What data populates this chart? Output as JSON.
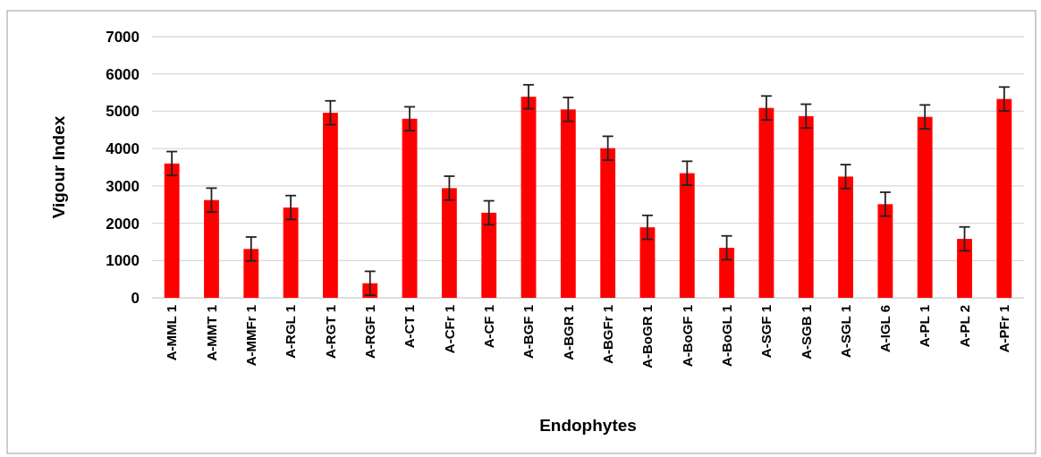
{
  "chart_data": {
    "type": "bar",
    "xlabel": "Endophytes",
    "ylabel": "Vigour Index",
    "categories": [
      "A-MML 1",
      "A-MMT 1",
      "A-MMFr 1",
      "A-RGL 1",
      "A-RGT 1",
      "A-RGF 1",
      "A-CT 1",
      "A-CFr 1",
      "A-CF 1",
      "A-BGF 1",
      "A-BGR 1",
      "A-BGFr 1",
      "A-BoGR 1",
      "A-BoGF 1",
      "A-BoGL 1",
      "A-SGF 1",
      "A-SGB 1",
      "A-SGL 1",
      "A-IGL 6",
      "A-PL 1",
      "A-PL 2",
      "A-PFr 1"
    ],
    "values": [
      3600,
      2620,
      1310,
      2420,
      4960,
      390,
      4800,
      2940,
      2280,
      5390,
      5050,
      4010,
      1890,
      3340,
      1340,
      5090,
      4870,
      3250,
      2510,
      4850,
      1580,
      5330
    ],
    "errors": [
      320,
      320,
      320,
      320,
      320,
      320,
      320,
      320,
      320,
      320,
      320,
      320,
      320,
      320,
      320,
      320,
      320,
      320,
      320,
      320,
      320,
      320
    ],
    "color": "#ff0000",
    "ylim": [
      0,
      7000
    ],
    "yticks": [
      0,
      1000,
      2000,
      3000,
      4000,
      5000,
      6000,
      7000
    ],
    "grid": "y"
  }
}
